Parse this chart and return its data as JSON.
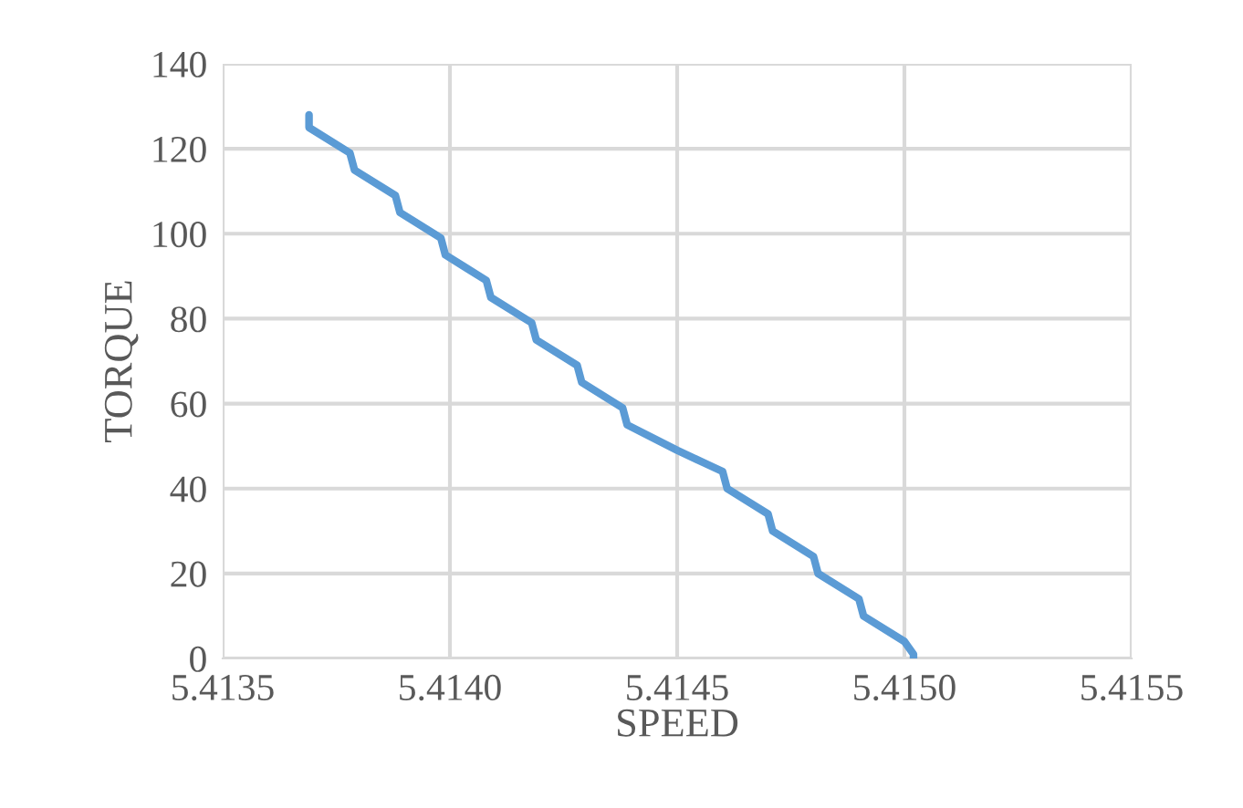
{
  "chart_data": {
    "type": "line",
    "xlabel": "SPEED",
    "ylabel": "TORQUE",
    "series": [
      {
        "color": "#5b9bd5",
        "x": [
          5.41369,
          5.41369,
          5.41378,
          5.41379,
          5.41388,
          5.41389,
          5.41398,
          5.41399,
          5.41408,
          5.41409,
          5.41418,
          5.41419,
          5.41428,
          5.41429,
          5.41438,
          5.41439,
          5.4145,
          5.4146,
          5.41461,
          5.4147,
          5.41471,
          5.4148,
          5.41481,
          5.4149,
          5.41491,
          5.415,
          5.41502,
          5.41502
        ],
        "values": [
          128,
          125,
          119,
          115,
          109,
          105,
          99,
          95,
          89,
          85,
          79,
          75,
          69,
          65,
          59,
          55,
          49,
          44,
          40,
          34,
          30,
          24,
          20,
          14,
          10,
          4,
          1,
          0
        ]
      }
    ],
    "xlim": [
      5.4135,
      5.4155
    ],
    "xticks": [
      {
        "value": 5.4135,
        "label": "5.4135"
      },
      {
        "value": 5.414,
        "label": "5.4140"
      },
      {
        "value": 5.4145,
        "label": "5.4145"
      },
      {
        "value": 5.415,
        "label": "5.4150"
      },
      {
        "value": 5.4155,
        "label": "5.4155"
      }
    ],
    "ylim": [
      0,
      140
    ],
    "yticks": [
      0,
      20,
      40,
      60,
      80,
      100,
      120,
      140
    ],
    "grid": true,
    "marker": "none",
    "line_style": "solid"
  }
}
